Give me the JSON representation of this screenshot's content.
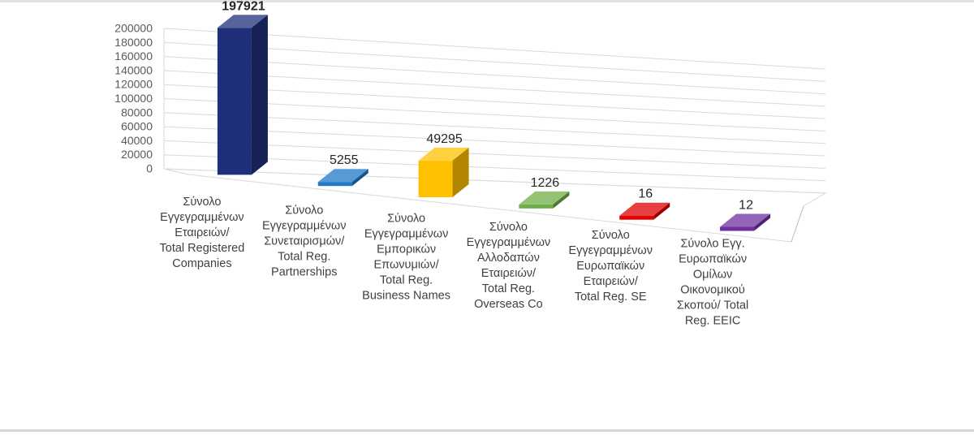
{
  "chart_data": {
    "type": "bar",
    "title": "",
    "xlabel": "",
    "ylabel": "",
    "ylim": [
      0,
      200000
    ],
    "y_ticks": [
      0,
      20000,
      40000,
      60000,
      80000,
      100000,
      120000,
      140000,
      160000,
      180000,
      200000
    ],
    "grid": true,
    "legend": "none",
    "categories": [
      [
        "Σύνολο",
        "Εγγεγραμμένων",
        "Εταιρειών/",
        "Total Registered",
        "Companies"
      ],
      [
        "Σύνολο",
        "Εγγεγραμμένων",
        "Συνεταιρισμών/",
        "Total Reg.",
        "Partnerships"
      ],
      [
        "Σύνολο",
        "Εγγεγραμμένων",
        "Εμπορικών",
        "Επωνυμιών/",
        "Total Reg.",
        "Business Names"
      ],
      [
        "Σύνολο",
        "Εγγεγραμμένων",
        "Αλλοδαπών",
        "Εταιρειών/",
        "Total Reg.",
        "Overseas Co"
      ],
      [
        "Σύνολο",
        "Εγγεγραμμένων",
        "Ευρωπαϊκών",
        "Εταιρειών/",
        "Total Reg. SE"
      ],
      [
        "Σύνολο Εγγ.",
        "Ευρωπαϊκών",
        "Ομίλων",
        "Οικονομικού",
        "Σκοπού/ Total",
        "Reg. EEIC"
      ]
    ],
    "values": [
      197921,
      5255,
      49295,
      1226,
      16,
      12
    ],
    "data_labels": [
      "197921",
      "5255",
      "49295",
      "1226",
      "16",
      "12"
    ],
    "colors": [
      "#1f2f7a",
      "#1f78c8",
      "#ffc000",
      "#70ad47",
      "#e00000",
      "#7030a0"
    ]
  }
}
